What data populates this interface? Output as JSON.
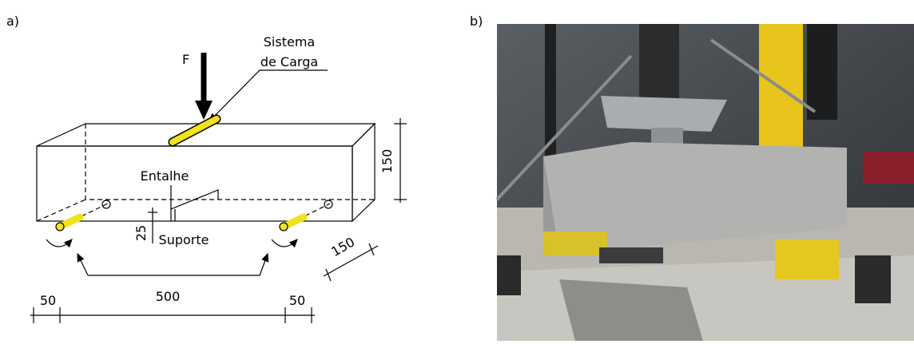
{
  "panel_a": {
    "label": "a)",
    "force": "F",
    "load_system": [
      "Sistema",
      "de Carga"
    ],
    "notch": "Entalhe",
    "support": "Suporte",
    "dimensions": {
      "height": 150,
      "width": 150,
      "notch_depth": 25,
      "overhang_left": 50,
      "span": 500,
      "overhang_right": 50
    }
  },
  "panel_b": {
    "label": "b)"
  }
}
